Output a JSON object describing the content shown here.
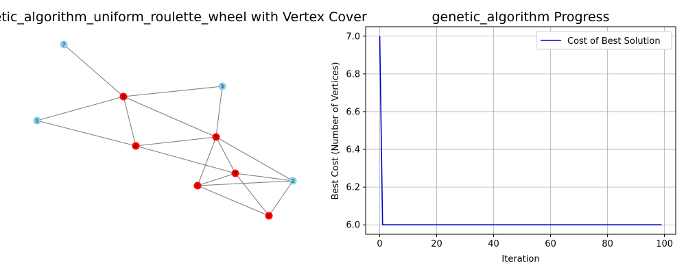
{
  "colors": {
    "edge": "#808080",
    "node_in_cover": "#ff0000",
    "node_not_in_cover": "#87ceeb",
    "line": "#0000cd",
    "grid": "#b0b0b0",
    "axis": "#000000"
  },
  "chart_data": [
    {
      "type": "network",
      "title": "_genetic_algorithm_uniform_roulette_wheel with Vertex Cover",
      "nodes": [
        {
          "id": "7",
          "in_cover": false
        },
        {
          "id": "3",
          "in_cover": false
        },
        {
          "id": "1",
          "in_cover": false
        },
        {
          "id": "2",
          "in_cover": false
        },
        {
          "id": "0",
          "in_cover": true
        },
        {
          "id": "4",
          "in_cover": true
        },
        {
          "id": "5",
          "in_cover": true
        },
        {
          "id": "6",
          "in_cover": true
        },
        {
          "id": "8",
          "in_cover": true
        },
        {
          "id": "9",
          "in_cover": true
        }
      ],
      "edges": [
        [
          "7",
          "0"
        ],
        [
          "0",
          "3"
        ],
        [
          "0",
          "1"
        ],
        [
          "0",
          "6"
        ],
        [
          "0",
          "5"
        ],
        [
          "1",
          "6"
        ],
        [
          "3",
          "5"
        ],
        [
          "6",
          "5"
        ],
        [
          "6",
          "9"
        ],
        [
          "5",
          "9"
        ],
        [
          "5",
          "4"
        ],
        [
          "5",
          "2"
        ],
        [
          "9",
          "4"
        ],
        [
          "9",
          "2"
        ],
        [
          "9",
          "8"
        ],
        [
          "4",
          "2"
        ],
        [
          "4",
          "8"
        ],
        [
          "2",
          "8"
        ]
      ]
    },
    {
      "type": "line",
      "title": "genetic_algorithm Progress",
      "xlabel": "Iteration",
      "ylabel": "Best Cost (Number of Vertices)",
      "xlim": [
        -4.95,
        103.95
      ],
      "ylim": [
        5.95,
        7.05
      ],
      "xticks": [
        0,
        20,
        40,
        60,
        80,
        100
      ],
      "yticks": [
        6.0,
        6.2,
        6.4,
        6.6,
        6.8,
        7.0
      ],
      "ytick_labels": [
        "6.0",
        "6.2",
        "6.4",
        "6.6",
        "6.8",
        "7.0"
      ],
      "grid": true,
      "legend_position": "upper-right",
      "series": [
        {
          "name": "Cost of Best Solution",
          "x": [
            0,
            1,
            99
          ],
          "y": [
            7,
            6,
            6
          ]
        }
      ]
    }
  ]
}
